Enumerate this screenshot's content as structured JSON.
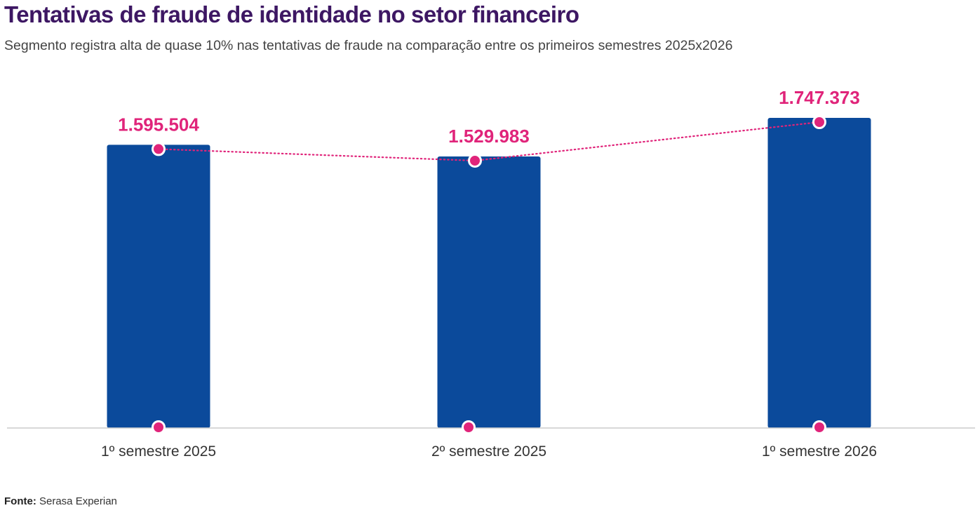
{
  "title": "Tentativas de fraude de identidade no setor financeiro",
  "subtitle": "Segmento registra alta de quase 10% nas tentativas de fraude na comparação entre os primeiros semestres 2025x2026",
  "source": {
    "label": "Fonte:",
    "text": "Serasa Experian"
  },
  "colors": {
    "bar": "#0b4a9b",
    "line": "#e0247a",
    "title": "#3d1763",
    "axis": "#cccccc"
  },
  "chart_data": {
    "type": "bar",
    "categories": [
      "1º semestre 2025",
      "2º semestre 2025",
      "1º semestre 2026"
    ],
    "values": [
      1595504,
      1529983,
      1747373
    ],
    "value_labels": [
      "1.595.504",
      "1.529.983",
      "1.747.373"
    ],
    "overlay_line": true,
    "grid": false
  }
}
